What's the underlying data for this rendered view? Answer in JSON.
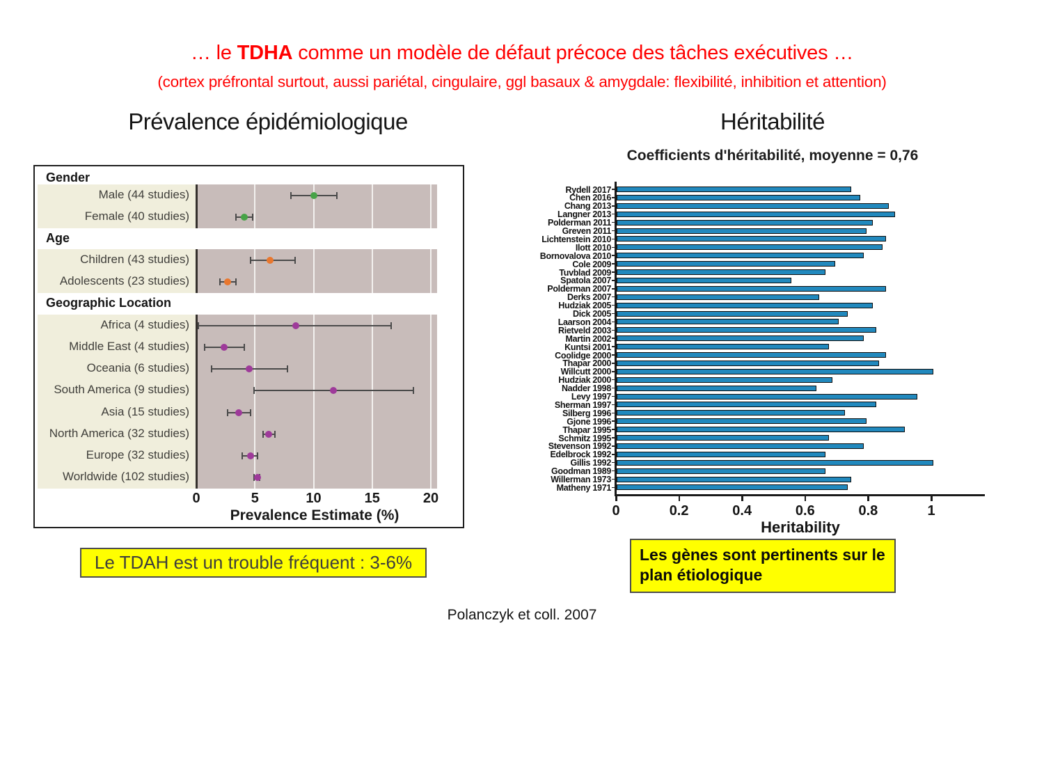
{
  "slide": {
    "title": {
      "prefix": "… le ",
      "bold": "TDHA",
      "suffix": " comme un modèle de défaut précoce des tâches exécutives …"
    },
    "subtitle": "(cortex préfrontal surtout, aussi pariétal, cingulaire, ggl basaux & amygdale: flexibilité, inhibition et attention)",
    "citation": "Polanczyk et coll. 2007"
  },
  "left_panel": {
    "title": "Prévalence épidémiologique",
    "callout": "Le TDAH est un trouble fréquent : 3-6%"
  },
  "right_panel": {
    "title": "Héritabilité",
    "subtitle": "Coefficients d'héritabilité, moyenne = 0,76",
    "callout_line1": "Les gènes sont pertinents sur le",
    "callout_line2": "plan étiologique"
  },
  "colors": {
    "title_red": "#ff0000",
    "callout_yellow": "#ffff00",
    "forest_plot_bg": "#c8bcba",
    "forest_label_bg": "#f0eedc",
    "gender_green": "#47a347",
    "age_orange": "#e9772e",
    "geo_purple": "#9e3a9a",
    "whisker_gray": "#4a4a4a",
    "bar_blue": "#2189be"
  },
  "chart_data": [
    {
      "type": "scatter",
      "name": "prevalence-forest-plot",
      "title": "Prévalence épidémiologique",
      "xlabel": "Prevalence Estimate (%)",
      "xlim": [
        0,
        20
      ],
      "xticks": [
        "0",
        "5",
        "10",
        "15",
        "20"
      ],
      "grid": true,
      "sections": [
        {
          "header": "Gender",
          "point_color": "#47a347",
          "rows": [
            {
              "label": "Male (44 studies)",
              "value": 10.0,
              "ci": [
                8.1,
                12.0
              ]
            },
            {
              "label": "Female (40 studies)",
              "value": 4.1,
              "ci": [
                3.4,
                4.8
              ]
            }
          ]
        },
        {
          "header": "Age",
          "point_color": "#e9772e",
          "rows": [
            {
              "label": "Children (43 studies)",
              "value": 6.3,
              "ci": [
                4.6,
                8.4
              ]
            },
            {
              "label": "Adolescents (23 studies)",
              "value": 2.7,
              "ci": [
                2.0,
                3.4
              ]
            }
          ]
        },
        {
          "header": "Geographic Location",
          "point_color": "#9e3a9a",
          "rows": [
            {
              "label": "Africa (4 studies)",
              "value": 8.5,
              "ci": [
                0.2,
                16.6
              ]
            },
            {
              "label": "Middle East (4 studies)",
              "value": 2.4,
              "ci": [
                0.7,
                4.1
              ]
            },
            {
              "label": "Oceania (6 studies)",
              "value": 4.5,
              "ci": [
                1.3,
                7.8
              ]
            },
            {
              "label": "South America (9 studies)",
              "value": 11.7,
              "ci": [
                4.9,
                18.5
              ]
            },
            {
              "label": "Asia (15 studies)",
              "value": 3.6,
              "ci": [
                2.7,
                4.6
              ]
            },
            {
              "label": "North America (32 studies)",
              "value": 6.2,
              "ci": [
                5.7,
                6.7
              ]
            },
            {
              "label": "Europe (32 studies)",
              "value": 4.6,
              "ci": [
                3.9,
                5.2
              ]
            },
            {
              "label": "Worldwide (102 studies)",
              "value": 5.2,
              "ci": [
                4.9,
                5.4
              ]
            }
          ]
        }
      ]
    },
    {
      "type": "bar",
      "name": "heritability-bar-chart",
      "orientation": "horizontal",
      "title": "Coefficients d'héritabilité, moyenne = 0,76",
      "xlabel": "Heritability",
      "xlim": [
        0,
        1.17
      ],
      "xticks": [
        "0",
        "0.2",
        "0.4",
        "0.6",
        "0.8",
        "1"
      ],
      "xtick_values": [
        0,
        0.2,
        0.4,
        0.6,
        0.8,
        1
      ],
      "bar_color": "#2189be",
      "categories": [
        "Rydell 2017",
        "Chen 2016",
        "Chang 2013",
        "Langner 2013",
        "Polderman 2011",
        "Greven 2011",
        "Lichtenstein 2010",
        "Ilott 2010",
        "Bornovalova 2010",
        "Cole 2009",
        "Tuvblad 2009",
        "Spatola 2007",
        "Polderman 2007",
        "Derks 2007",
        "Hudziak 2005",
        "Dick 2005",
        "Laarson 2004",
        "Rietveld 2003",
        "Martin 2002",
        "Kuntsi 2001",
        "Coolidge 2000",
        "Thapar 2000",
        "Willcutt 2000",
        "Hudziak 2000",
        "Nadder 1998",
        "Levy 1997",
        "Sherman 1997",
        "Silberg 1996",
        "Gjone 1996",
        "Thapar 1995",
        "Schmitz 1995",
        "Stevenson 1992",
        "Edelbrock 1992",
        "Gillis 1992",
        "Goodman 1989",
        "Willerman 1973",
        "Matheny 1971"
      ],
      "values": [
        0.74,
        0.77,
        0.86,
        0.88,
        0.81,
        0.79,
        0.85,
        0.84,
        0.78,
        0.69,
        0.66,
        0.55,
        0.85,
        0.64,
        0.81,
        0.73,
        0.7,
        0.82,
        0.78,
        0.67,
        0.85,
        0.83,
        1.0,
        0.68,
        0.63,
        0.95,
        0.82,
        0.72,
        0.79,
        0.91,
        0.67,
        0.78,
        0.66,
        1.0,
        0.66,
        0.74,
        0.73
      ]
    }
  ]
}
